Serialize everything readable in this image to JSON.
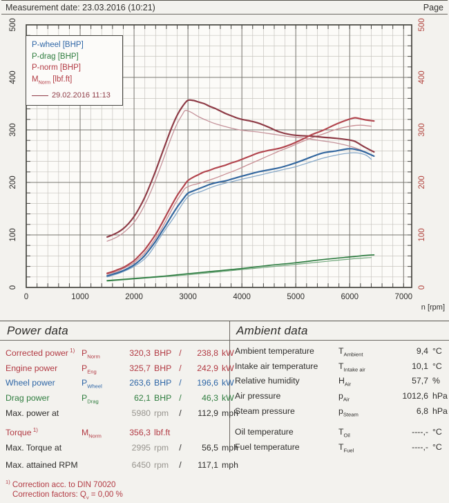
{
  "header": {
    "measurement_date": "Measurement date: 23.03.2016 (10:21)",
    "page_label": "Page"
  },
  "chart_data": {
    "type": "line",
    "x_axis": {
      "label": "n [rpm]",
      "min": 0,
      "max": 7150,
      "major_ticks": [
        0,
        1000,
        2000,
        3000,
        4000,
        5000,
        6000,
        7000
      ],
      "minor_step": 200
    },
    "y_axis_left": {
      "min": 0,
      "max": 500,
      "major_ticks": [
        0,
        100,
        200,
        300,
        400,
        500
      ],
      "minor_step": 20,
      "color": "#2e2d2b"
    },
    "y_axis_right": {
      "min": 0,
      "max": 500,
      "major_ticks": [
        0,
        100,
        200,
        300,
        400,
        500
      ],
      "minor_step": 20,
      "color": "#b2453f"
    },
    "grid": {
      "minor_color": "#c6c4be",
      "major_color": "#76746e",
      "border_color": "#45443f",
      "background": "#fcfbf8"
    },
    "legend": [
      {
        "text": "P-wheel [BHP]",
        "color": "#2e66a6"
      },
      {
        "text": "P-drag [BHP]",
        "color": "#2f7d3f"
      },
      {
        "text": "P-norm [BHP]",
        "color": "#b23a43"
      },
      {
        "text": "M",
        "sub": "Norm",
        "text2": " [lbf.ft]",
        "color": "#b23a43"
      },
      {
        "text": "29.02.2016 11:13",
        "color": "#8e3b46",
        "swatch": "line"
      }
    ],
    "series": [
      {
        "name": "M-norm-ref",
        "color": "#c4929a",
        "width": 1.3,
        "points": [
          [
            1500,
            88
          ],
          [
            1600,
            92
          ],
          [
            1700,
            97
          ],
          [
            1800,
            104
          ],
          [
            1900,
            113
          ],
          [
            2000,
            124
          ],
          [
            2100,
            139
          ],
          [
            2200,
            158
          ],
          [
            2300,
            180
          ],
          [
            2400,
            205
          ],
          [
            2500,
            232
          ],
          [
            2600,
            260
          ],
          [
            2700,
            288
          ],
          [
            2800,
            312
          ],
          [
            2900,
            330
          ],
          [
            2950,
            337
          ],
          [
            3050,
            334
          ],
          [
            3200,
            325
          ],
          [
            3350,
            318
          ],
          [
            3500,
            312
          ],
          [
            3700,
            306
          ],
          [
            3900,
            301
          ],
          [
            4100,
            298
          ],
          [
            4300,
            296
          ],
          [
            4500,
            293
          ],
          [
            4700,
            290
          ],
          [
            4900,
            287
          ],
          [
            5100,
            285
          ],
          [
            5300,
            282
          ],
          [
            5500,
            279
          ],
          [
            5750,
            275
          ],
          [
            6000,
            269
          ],
          [
            6200,
            262
          ],
          [
            6400,
            252
          ]
        ]
      },
      {
        "name": "P-norm-ref",
        "color": "#c88e94",
        "width": 1.3,
        "points": [
          [
            1500,
            25
          ],
          [
            1600,
            28
          ],
          [
            1700,
            31
          ],
          [
            1800,
            36
          ],
          [
            1900,
            41
          ],
          [
            2000,
            47
          ],
          [
            2100,
            56
          ],
          [
            2200,
            66
          ],
          [
            2300,
            79
          ],
          [
            2400,
            94
          ],
          [
            2500,
            110
          ],
          [
            2600,
            129
          ],
          [
            2700,
            148
          ],
          [
            2800,
            166
          ],
          [
            2900,
            182
          ],
          [
            2950,
            189
          ],
          [
            3050,
            194
          ],
          [
            3200,
            198
          ],
          [
            3350,
            203
          ],
          [
            3500,
            208
          ],
          [
            3700,
            216
          ],
          [
            3900,
            224
          ],
          [
            4100,
            233
          ],
          [
            4300,
            242
          ],
          [
            4500,
            251
          ],
          [
            4700,
            260
          ],
          [
            4900,
            268
          ],
          [
            5100,
            277
          ],
          [
            5300,
            285
          ],
          [
            5500,
            292
          ],
          [
            5750,
            301
          ],
          [
            6000,
            307
          ],
          [
            6200,
            309
          ],
          [
            6400,
            307
          ]
        ]
      },
      {
        "name": "P-wheel-ref",
        "color": "#86a8c8",
        "width": 1.3,
        "points": [
          [
            1500,
            20
          ],
          [
            1750,
            28
          ],
          [
            2000,
            40
          ],
          [
            2250,
            60
          ],
          [
            2500,
            98
          ],
          [
            2750,
            135
          ],
          [
            2995,
            172
          ],
          [
            3250,
            183
          ],
          [
            3500,
            193
          ],
          [
            3750,
            200
          ],
          [
            4000,
            206
          ],
          [
            4250,
            212
          ],
          [
            4500,
            218
          ],
          [
            4750,
            224
          ],
          [
            5000,
            230
          ],
          [
            5250,
            238
          ],
          [
            5500,
            246
          ],
          [
            5750,
            252
          ],
          [
            6000,
            256
          ],
          [
            6150,
            256
          ],
          [
            6300,
            252
          ],
          [
            6400,
            244
          ]
        ]
      },
      {
        "name": "P-drag-ref",
        "color": "#72a87d",
        "width": 1.2,
        "points": [
          [
            1500,
            12
          ],
          [
            2000,
            16
          ],
          [
            2500,
            20
          ],
          [
            3000,
            24
          ],
          [
            3500,
            29
          ],
          [
            4000,
            34
          ],
          [
            4500,
            39
          ],
          [
            5000,
            44
          ],
          [
            5500,
            49
          ],
          [
            6000,
            54
          ],
          [
            6400,
            57
          ]
        ]
      },
      {
        "name": "M-norm",
        "color": "#8e3b46",
        "width": 2.2,
        "points": [
          [
            1500,
            96
          ],
          [
            1600,
            100
          ],
          [
            1700,
            105
          ],
          [
            1800,
            112
          ],
          [
            1900,
            122
          ],
          [
            2000,
            135
          ],
          [
            2100,
            152
          ],
          [
            2200,
            172
          ],
          [
            2300,
            196
          ],
          [
            2400,
            222
          ],
          [
            2500,
            250
          ],
          [
            2600,
            278
          ],
          [
            2700,
            305
          ],
          [
            2800,
            328
          ],
          [
            2900,
            345
          ],
          [
            2995,
            356
          ],
          [
            3100,
            356
          ],
          [
            3200,
            353
          ],
          [
            3300,
            350
          ],
          [
            3400,
            345
          ],
          [
            3500,
            341
          ],
          [
            3600,
            336
          ],
          [
            3700,
            331
          ],
          [
            3800,
            327
          ],
          [
            3900,
            323
          ],
          [
            4000,
            320
          ],
          [
            4150,
            317
          ],
          [
            4300,
            313
          ],
          [
            4500,
            305
          ],
          [
            4700,
            296
          ],
          [
            4900,
            291
          ],
          [
            5100,
            289
          ],
          [
            5300,
            288
          ],
          [
            5500,
            286
          ],
          [
            5750,
            284
          ],
          [
            5980,
            281
          ],
          [
            6100,
            278
          ],
          [
            6200,
            272
          ],
          [
            6300,
            266
          ],
          [
            6450,
            258
          ]
        ]
      },
      {
        "name": "P-norm",
        "color": "#b2454e",
        "width": 2.2,
        "points": [
          [
            1500,
            27
          ],
          [
            1600,
            30
          ],
          [
            1700,
            34
          ],
          [
            1800,
            38
          ],
          [
            1900,
            44
          ],
          [
            2000,
            51
          ],
          [
            2100,
            61
          ],
          [
            2200,
            72
          ],
          [
            2300,
            86
          ],
          [
            2400,
            101
          ],
          [
            2500,
            119
          ],
          [
            2600,
            138
          ],
          [
            2700,
            157
          ],
          [
            2800,
            175
          ],
          [
            2900,
            190
          ],
          [
            2995,
            203
          ],
          [
            3100,
            210
          ],
          [
            3200,
            215
          ],
          [
            3300,
            220
          ],
          [
            3400,
            223
          ],
          [
            3500,
            227
          ],
          [
            3600,
            230
          ],
          [
            3700,
            233
          ],
          [
            3800,
            237
          ],
          [
            3900,
            240
          ],
          [
            4000,
            244
          ],
          [
            4150,
            250
          ],
          [
            4300,
            256
          ],
          [
            4500,
            261
          ],
          [
            4700,
            265
          ],
          [
            4900,
            272
          ],
          [
            5100,
            281
          ],
          [
            5300,
            291
          ],
          [
            5500,
            299
          ],
          [
            5750,
            311
          ],
          [
            5980,
            320
          ],
          [
            6100,
            323
          ],
          [
            6200,
            321
          ],
          [
            6300,
            319
          ],
          [
            6450,
            317
          ]
        ]
      },
      {
        "name": "P-wheel",
        "color": "#33679f",
        "width": 2.2,
        "points": [
          [
            1500,
            22
          ],
          [
            1600,
            25
          ],
          [
            1700,
            28
          ],
          [
            1800,
            32
          ],
          [
            1900,
            37
          ],
          [
            2000,
            43
          ],
          [
            2100,
            51
          ],
          [
            2200,
            61
          ],
          [
            2300,
            74
          ],
          [
            2400,
            88
          ],
          [
            2500,
            104
          ],
          [
            2600,
            120
          ],
          [
            2700,
            137
          ],
          [
            2800,
            153
          ],
          [
            2900,
            167
          ],
          [
            2995,
            179
          ],
          [
            3100,
            184
          ],
          [
            3200,
            188
          ],
          [
            3300,
            192
          ],
          [
            3400,
            196
          ],
          [
            3500,
            199
          ],
          [
            3600,
            201
          ],
          [
            3700,
            203
          ],
          [
            3800,
            206
          ],
          [
            3900,
            209
          ],
          [
            4000,
            212
          ],
          [
            4150,
            216
          ],
          [
            4300,
            220
          ],
          [
            4500,
            224
          ],
          [
            4700,
            228
          ],
          [
            4900,
            234
          ],
          [
            5100,
            241
          ],
          [
            5300,
            249
          ],
          [
            5500,
            256
          ],
          [
            5750,
            260
          ],
          [
            5980,
            264
          ],
          [
            6100,
            263
          ],
          [
            6250,
            259
          ],
          [
            6450,
            250
          ]
        ]
      },
      {
        "name": "P-drag",
        "color": "#2e7d41",
        "width": 1.7,
        "points": [
          [
            1500,
            13
          ],
          [
            2000,
            17
          ],
          [
            2500,
            21
          ],
          [
            3000,
            26
          ],
          [
            3500,
            31
          ],
          [
            4000,
            36
          ],
          [
            4500,
            42
          ],
          [
            5000,
            47
          ],
          [
            5500,
            53
          ],
          [
            6000,
            58
          ],
          [
            6300,
            61
          ],
          [
            6450,
            62
          ]
        ]
      }
    ]
  },
  "power_data": {
    "title": "Power data",
    "rows": [
      {
        "label": "Corrected power",
        "note": "1)",
        "sym": "P",
        "sub": "Norm",
        "v1": "320,3",
        "u1": "BHP",
        "v2": "238,8",
        "u2": "kW",
        "color": "red"
      },
      {
        "label": "Engine power",
        "note": "",
        "sym": "P",
        "sub": "Eng",
        "v1": "325,7",
        "u1": "BHP",
        "v2": "242,9",
        "u2": "kW",
        "color": "red"
      },
      {
        "label": "Wheel power",
        "note": "",
        "sym": "P",
        "sub": "Wheel",
        "v1": "263,6",
        "u1": "BHP",
        "v2": "196,6",
        "u2": "kW",
        "color": "blue"
      },
      {
        "label": "Drag power",
        "note": "",
        "sym": "P",
        "sub": "Drag",
        "v1": "62,1",
        "u1": "BHP",
        "v2": "46,3",
        "u2": "kW",
        "color": "green"
      },
      {
        "label": "Max. power at",
        "note": "",
        "sym": "",
        "sub": "",
        "v1": "5980",
        "u1": "rpm",
        "v2": "112,9",
        "u2": "mph",
        "color": "black",
        "v1_muted": true
      },
      {
        "label": "Torque",
        "note": "1)",
        "sym": "M",
        "sub": "Norm",
        "v1": "356,3",
        "u1": "lbf.ft",
        "v2": "",
        "u2": "",
        "color": "red",
        "gap": true
      },
      {
        "label": "Max. Torque at",
        "note": "",
        "sym": "",
        "sub": "",
        "v1": "2995",
        "u1": "rpm",
        "v2": "56,5",
        "u2": "mph",
        "color": "black",
        "v1_muted": true
      },
      {
        "label": "Max. attained RPM",
        "note": "",
        "sym": "",
        "sub": "",
        "v1": "6450",
        "u1": "rpm",
        "v2": "117,1",
        "u2": "mph",
        "color": "black",
        "v1_muted": true,
        "gap": true
      }
    ],
    "footnotes": [
      {
        "sup": "1)",
        "pre": " Correction acc. to DIN 70020",
        "sub": "",
        "post": "",
        "indent": false
      },
      {
        "sup": "",
        "pre": "Correction factors: Q",
        "sub": "v",
        "post": " =   0,00 %",
        "indent": true
      }
    ]
  },
  "ambient_data": {
    "title": "Ambient data",
    "rows": [
      {
        "label": "Ambient temperature",
        "sym": "T",
        "sub": "Ambient",
        "v": "9,4",
        "u": "°C"
      },
      {
        "label": "Intake air temperature",
        "sym": "T",
        "sub": "Intake air",
        "v": "10,1",
        "u": "°C"
      },
      {
        "label": "Relative humidity",
        "sym": "H",
        "sub": "Air",
        "v": "57,7",
        "u": "%"
      },
      {
        "label": "Air pressure",
        "sym": "p",
        "sub": "Air",
        "v": "1012,6",
        "u": "hPa"
      },
      {
        "label": "Steam pressure",
        "sym": "p",
        "sub": "Steam",
        "v": "6,8",
        "u": "hPa"
      },
      {
        "label": "Oil temperature",
        "sym": "T",
        "sub": "Oil",
        "v": "----,-",
        "u": "°C",
        "gap": true
      },
      {
        "label": "Fuel temperature",
        "sym": "T",
        "sub": "Fuel",
        "v": "----,-",
        "u": "°C"
      }
    ]
  }
}
